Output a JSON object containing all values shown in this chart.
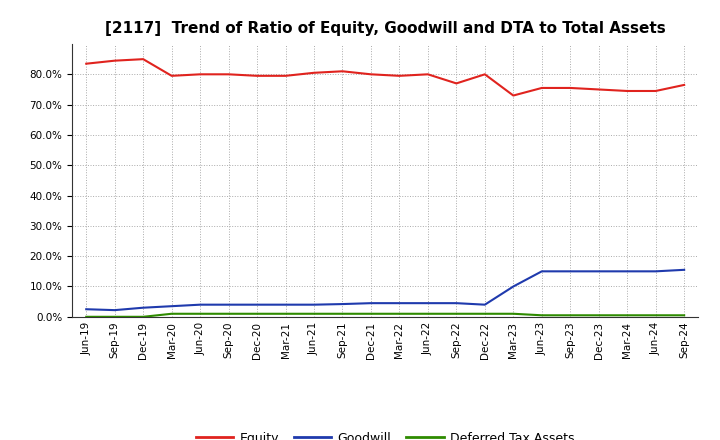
{
  "title": "[2117]  Trend of Ratio of Equity, Goodwill and DTA to Total Assets",
  "x_labels": [
    "Jun-19",
    "Sep-19",
    "Dec-19",
    "Mar-20",
    "Jun-20",
    "Sep-20",
    "Dec-20",
    "Mar-21",
    "Jun-21",
    "Sep-21",
    "Dec-21",
    "Mar-22",
    "Jun-22",
    "Sep-22",
    "Dec-22",
    "Mar-23",
    "Jun-23",
    "Sep-23",
    "Dec-23",
    "Mar-24",
    "Jun-24",
    "Sep-24"
  ],
  "equity": [
    83.5,
    84.5,
    85.0,
    79.5,
    80.0,
    80.0,
    79.5,
    79.5,
    80.5,
    81.0,
    80.0,
    79.5,
    80.0,
    77.0,
    80.0,
    73.0,
    75.5,
    75.5,
    75.0,
    74.5,
    74.5,
    76.5
  ],
  "goodwill": [
    2.5,
    2.2,
    3.0,
    3.5,
    4.0,
    4.0,
    4.0,
    4.0,
    4.0,
    4.2,
    4.5,
    4.5,
    4.5,
    4.5,
    4.0,
    10.0,
    15.0,
    15.0,
    15.0,
    15.0,
    15.0,
    15.5
  ],
  "dta": [
    0.0,
    0.0,
    0.0,
    1.0,
    1.0,
    1.0,
    1.0,
    1.0,
    1.0,
    1.0,
    1.0,
    1.0,
    1.0,
    1.0,
    1.0,
    1.0,
    0.5,
    0.5,
    0.5,
    0.5,
    0.5,
    0.5
  ],
  "equity_color": "#e0231e",
  "goodwill_color": "#1f3aad",
  "dta_color": "#2e8b00",
  "background_color": "#ffffff",
  "plot_bg_color": "#ffffff",
  "grid_color": "#aaaaaa",
  "ylim": [
    0,
    90
  ],
  "yticks": [
    0,
    10,
    20,
    30,
    40,
    50,
    60,
    70,
    80
  ],
  "legend_labels": [
    "Equity",
    "Goodwill",
    "Deferred Tax Assets"
  ],
  "title_fontsize": 11,
  "tick_fontsize": 7.5,
  "legend_fontsize": 9
}
